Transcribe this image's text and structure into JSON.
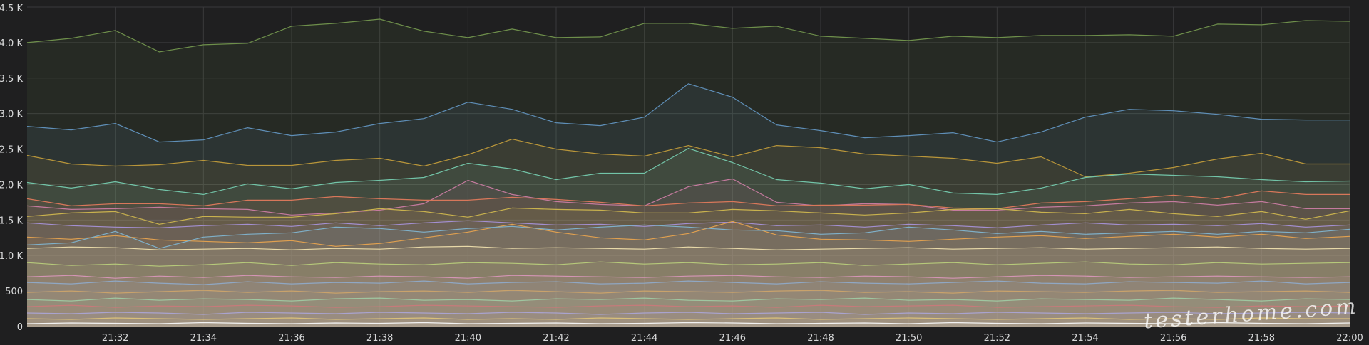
{
  "panel": {
    "background": "#1f1f20",
    "grid_color": "#3a3a3c",
    "watermark": "testerhome.com"
  },
  "chart_data": {
    "type": "area",
    "title": "",
    "xlabel": "",
    "ylabel": "",
    "grid": true,
    "legend": "none",
    "ylim": [
      0,
      4500
    ],
    "y_ticks": [
      "0",
      "500",
      "1.0 K",
      "1.5 K",
      "2.0 K",
      "2.5 K",
      "3.0 K",
      "3.5 K",
      "4.0 K",
      "4.5 K"
    ],
    "y_tick_values": [
      0,
      500,
      1000,
      1500,
      2000,
      2500,
      3000,
      3500,
      4000,
      4500
    ],
    "x_ticks": [
      "21:32",
      "21:34",
      "21:36",
      "21:38",
      "21:40",
      "21:42",
      "21:44",
      "21:46",
      "21:48",
      "21:50",
      "21:52",
      "21:54",
      "21:56",
      "21:58",
      "22:00"
    ],
    "x": [
      "21:30",
      "21:31",
      "21:32",
      "21:33",
      "21:34",
      "21:35",
      "21:36",
      "21:37",
      "21:38",
      "21:39",
      "21:40",
      "21:41",
      "21:42",
      "21:43",
      "21:44",
      "21:45",
      "21:46",
      "21:47",
      "21:48",
      "21:49",
      "21:50",
      "21:51",
      "21:52",
      "21:53",
      "21:54",
      "21:55",
      "21:56",
      "21:57",
      "21:58",
      "21:59",
      "22:00"
    ],
    "series": [
      {
        "color": "#6e8f4b",
        "values": [
          4000,
          4060,
          4170,
          3870,
          3970,
          3990,
          4230,
          4270,
          4330,
          4160,
          4070,
          4190,
          4070,
          4080,
          4270,
          4270,
          4200,
          4230,
          4090,
          4060,
          4030,
          4090,
          4070,
          4100,
          4100,
          4110,
          4090,
          4260,
          4250,
          4310,
          4300
        ]
      },
      {
        "color": "#5f8fb8",
        "values": [
          2820,
          2770,
          2860,
          2600,
          2630,
          2800,
          2690,
          2740,
          2860,
          2930,
          3160,
          3060,
          2870,
          2830,
          2950,
          3420,
          3230,
          2840,
          2760,
          2660,
          2690,
          2730,
          2600,
          2740,
          2950,
          3060,
          3040,
          2990,
          2920,
          2910,
          2910
        ]
      },
      {
        "color": "#b9963a",
        "values": [
          2410,
          2290,
          2260,
          2280,
          2340,
          2270,
          2270,
          2340,
          2370,
          2260,
          2420,
          2640,
          2500,
          2430,
          2400,
          2550,
          2390,
          2550,
          2520,
          2430,
          2400,
          2370,
          2300,
          2390,
          2110,
          2160,
          2240,
          2360,
          2440,
          2290,
          2290
        ]
      },
      {
        "color": "#72c4a8",
        "values": [
          2030,
          1950,
          2040,
          1930,
          1860,
          2010,
          1940,
          2030,
          2060,
          2100,
          2300,
          2220,
          2070,
          2160,
          2160,
          2510,
          2310,
          2070,
          2020,
          1940,
          2000,
          1880,
          1860,
          1950,
          2100,
          2150,
          2130,
          2110,
          2070,
          2040,
          2050
        ]
      },
      {
        "color": "#c47a9e",
        "values": [
          1700,
          1650,
          1660,
          1680,
          1660,
          1650,
          1570,
          1600,
          1640,
          1730,
          2060,
          1860,
          1760,
          1720,
          1700,
          1970,
          2080,
          1750,
          1700,
          1730,
          1720,
          1640,
          1640,
          1680,
          1700,
          1740,
          1760,
          1710,
          1760,
          1660,
          1660
        ]
      },
      {
        "color": "#d8775a",
        "values": [
          1800,
          1700,
          1730,
          1730,
          1700,
          1780,
          1780,
          1830,
          1800,
          1780,
          1780,
          1820,
          1790,
          1750,
          1700,
          1740,
          1760,
          1700,
          1710,
          1710,
          1720,
          1670,
          1660,
          1740,
          1760,
          1800,
          1850,
          1800,
          1910,
          1860,
          1860
        ]
      },
      {
        "color": "#c9b24e",
        "values": [
          1550,
          1600,
          1620,
          1440,
          1550,
          1540,
          1540,
          1590,
          1660,
          1620,
          1540,
          1670,
          1650,
          1640,
          1600,
          1600,
          1650,
          1630,
          1600,
          1570,
          1600,
          1650,
          1660,
          1610,
          1590,
          1650,
          1590,
          1550,
          1620,
          1510,
          1630
        ]
      },
      {
        "color": "#a38fd1",
        "values": [
          1460,
          1420,
          1400,
          1390,
          1420,
          1440,
          1410,
          1460,
          1420,
          1460,
          1490,
          1460,
          1430,
          1440,
          1410,
          1450,
          1470,
          1420,
          1430,
          1400,
          1440,
          1420,
          1390,
          1430,
          1460,
          1430,
          1440,
          1420,
          1450,
          1400,
          1430
        ]
      },
      {
        "color": "#e0a050",
        "values": [
          1260,
          1230,
          1280,
          1220,
          1200,
          1180,
          1210,
          1130,
          1170,
          1250,
          1330,
          1440,
          1330,
          1250,
          1220,
          1310,
          1480,
          1290,
          1230,
          1220,
          1200,
          1230,
          1260,
          1280,
          1240,
          1270,
          1300,
          1260,
          1300,
          1240,
          1270
        ]
      },
      {
        "color": "#7fb0c9",
        "values": [
          1150,
          1180,
          1340,
          1100,
          1260,
          1300,
          1320,
          1400,
          1380,
          1330,
          1380,
          1410,
          1360,
          1400,
          1430,
          1400,
          1360,
          1350,
          1300,
          1320,
          1400,
          1360,
          1310,
          1340,
          1300,
          1320,
          1340,
          1300,
          1340,
          1320,
          1370
        ]
      },
      {
        "color": "#e8d9a8",
        "values": [
          1100,
          1120,
          1110,
          1080,
          1090,
          1100,
          1080,
          1100,
          1090,
          1120,
          1130,
          1100,
          1110,
          1100,
          1090,
          1120,
          1100,
          1080,
          1090,
          1100,
          1110,
          1090,
          1100,
          1110,
          1090,
          1100,
          1110,
          1120,
          1100,
          1090,
          1100
        ]
      },
      {
        "color": "#b6c97a",
        "values": [
          900,
          860,
          880,
          850,
          870,
          900,
          860,
          900,
          880,
          870,
          900,
          890,
          870,
          910,
          880,
          900,
          870,
          880,
          900,
          860,
          880,
          900,
          870,
          890,
          910,
          880,
          870,
          900,
          880,
          890,
          900
        ]
      },
      {
        "color": "#d495b5",
        "values": [
          700,
          720,
          680,
          710,
          690,
          720,
          700,
          690,
          710,
          700,
          680,
          720,
          710,
          700,
          690,
          710,
          720,
          700,
          690,
          710,
          700,
          680,
          700,
          720,
          710,
          690,
          700,
          710,
          700,
          690,
          700
        ]
      },
      {
        "color": "#8fa7c4",
        "values": [
          620,
          600,
          640,
          610,
          590,
          630,
          600,
          620,
          610,
          640,
          600,
          620,
          630,
          600,
          610,
          640,
          620,
          600,
          630,
          610,
          600,
          620,
          640,
          610,
          600,
          630,
          620,
          610,
          640,
          600,
          620
        ]
      },
      {
        "color": "#c9a26b",
        "values": [
          480,
          500,
          470,
          490,
          510,
          480,
          500,
          470,
          490,
          500,
          480,
          510,
          490,
          470,
          500,
          490,
          480,
          500,
          510,
          480,
          490,
          470,
          500,
          490,
          480,
          500,
          510,
          480,
          490,
          500,
          480
        ]
      },
      {
        "color": "#9fc6a0",
        "values": [
          380,
          360,
          400,
          370,
          390,
          380,
          360,
          390,
          400,
          370,
          380,
          360,
          390,
          380,
          400,
          370,
          360,
          390,
          380,
          400,
          370,
          380,
          360,
          390,
          380,
          370,
          400,
          380,
          360,
          390,
          380
        ]
      },
      {
        "color": "#c77a7a",
        "values": [
          280,
          300,
          270,
          290,
          280,
          300,
          290,
          270,
          280,
          300,
          290,
          280,
          270,
          290,
          300,
          280,
          290,
          270,
          300,
          280,
          290,
          300,
          270,
          280,
          290,
          300,
          280,
          270,
          290,
          280,
          290
        ]
      },
      {
        "color": "#a9a3cf",
        "values": [
          190,
          180,
          200,
          190,
          170,
          200,
          190,
          180,
          200,
          190,
          180,
          200,
          190,
          170,
          190,
          200,
          180,
          190,
          200,
          170,
          190,
          180,
          200,
          190,
          180,
          190,
          200,
          180,
          190,
          200,
          190
        ]
      },
      {
        "color": "#d9c07a",
        "values": [
          110,
          100,
          120,
          110,
          100,
          110,
          120,
          100,
          110,
          120,
          100,
          110,
          100,
          120,
          110,
          100,
          110,
          120,
          100,
          110,
          120,
          110,
          100,
          110,
          120,
          100,
          110,
          100,
          120,
          110,
          110
        ]
      },
      {
        "color": "#f2f2f2",
        "values": [
          40,
          50,
          45,
          40,
          55,
          45,
          40,
          50,
          45,
          55,
          40,
          45,
          50,
          40,
          45,
          55,
          50,
          40,
          45,
          50,
          40,
          55,
          45,
          40,
          50,
          45,
          40,
          55,
          45,
          40,
          50
        ]
      }
    ]
  }
}
